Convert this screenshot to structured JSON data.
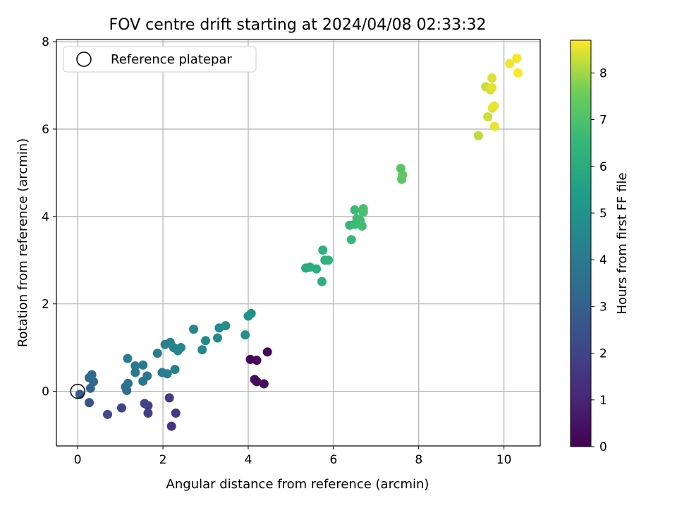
{
  "chart_data": {
    "type": "scatter",
    "title": "FOV centre drift starting at 2024/04/08 02:33:32",
    "xlabel": "Angular distance from reference (arcmin)",
    "ylabel": "Rotation from reference (arcmin)",
    "xlim": [
      -0.5,
      10.85
    ],
    "ylim": [
      -1.25,
      8.05
    ],
    "x_ticks": [
      0,
      2,
      4,
      6,
      8,
      10
    ],
    "y_ticks": [
      0,
      2,
      4,
      6,
      8
    ],
    "grid": true,
    "legend": {
      "placement": "top-left",
      "entries": [
        "Reference platepar"
      ]
    },
    "colorbar": {
      "label": "Hours from first FF file",
      "range": [
        0,
        8.7
      ],
      "ticks": [
        0,
        1,
        2,
        3,
        4,
        5,
        6,
        7,
        8
      ],
      "colormap": "viridis"
    },
    "reference_point": {
      "x": 0,
      "y": 0
    },
    "points": [
      {
        "x": 4.45,
        "y": 0.9,
        "h": 0.1
      },
      {
        "x": 4.05,
        "y": 0.73,
        "h": 0.15
      },
      {
        "x": 4.2,
        "y": 0.71,
        "h": 0.2
      },
      {
        "x": 4.15,
        "y": 0.27,
        "h": 0.25
      },
      {
        "x": 4.2,
        "y": 0.22,
        "h": 0.3
      },
      {
        "x": 4.37,
        "y": 0.17,
        "h": 0.35
      },
      {
        "x": 2.2,
        "y": -0.8,
        "h": 1.5
      },
      {
        "x": 2.3,
        "y": -0.5,
        "h": 1.6
      },
      {
        "x": 2.15,
        "y": -0.15,
        "h": 1.7
      },
      {
        "x": 1.65,
        "y": -0.5,
        "h": 1.8
      },
      {
        "x": 1.65,
        "y": -0.33,
        "h": 1.85
      },
      {
        "x": 1.57,
        "y": -0.28,
        "h": 1.9
      },
      {
        "x": 1.03,
        "y": -0.38,
        "h": 2.0
      },
      {
        "x": 0.7,
        "y": -0.53,
        "h": 2.2
      },
      {
        "x": 0.27,
        "y": -0.26,
        "h": 2.5
      },
      {
        "x": 0.05,
        "y": -0.07,
        "h": 2.9
      },
      {
        "x": 0.3,
        "y": 0.07,
        "h": 3.1
      },
      {
        "x": 0.37,
        "y": 0.22,
        "h": 3.2
      },
      {
        "x": 0.27,
        "y": 0.31,
        "h": 3.3
      },
      {
        "x": 0.33,
        "y": 0.38,
        "h": 3.4
      },
      {
        "x": 1.15,
        "y": 0.02,
        "h": 3.5
      },
      {
        "x": 1.12,
        "y": 0.1,
        "h": 3.6
      },
      {
        "x": 1.18,
        "y": 0.18,
        "h": 3.7
      },
      {
        "x": 1.53,
        "y": 0.23,
        "h": 3.8
      },
      {
        "x": 1.63,
        "y": 0.35,
        "h": 3.85
      },
      {
        "x": 1.35,
        "y": 0.43,
        "h": 3.9
      },
      {
        "x": 1.35,
        "y": 0.58,
        "h": 3.95
      },
      {
        "x": 1.53,
        "y": 0.6,
        "h": 4.0
      },
      {
        "x": 1.17,
        "y": 0.75,
        "h": 4.05
      },
      {
        "x": 1.87,
        "y": 0.87,
        "h": 4.1
      },
      {
        "x": 1.98,
        "y": 0.43,
        "h": 4.15
      },
      {
        "x": 2.1,
        "y": 0.4,
        "h": 4.2
      },
      {
        "x": 2.28,
        "y": 0.5,
        "h": 4.25
      },
      {
        "x": 2.05,
        "y": 1.07,
        "h": 4.3
      },
      {
        "x": 2.17,
        "y": 1.12,
        "h": 4.35
      },
      {
        "x": 2.25,
        "y": 1.0,
        "h": 4.4
      },
      {
        "x": 2.35,
        "y": 0.93,
        "h": 4.45
      },
      {
        "x": 2.42,
        "y": 1.0,
        "h": 4.5
      },
      {
        "x": 2.72,
        "y": 1.42,
        "h": 4.55
      },
      {
        "x": 2.92,
        "y": 0.95,
        "h": 4.6
      },
      {
        "x": 3.0,
        "y": 1.16,
        "h": 4.65
      },
      {
        "x": 3.28,
        "y": 1.22,
        "h": 4.7
      },
      {
        "x": 3.32,
        "y": 1.45,
        "h": 4.75
      },
      {
        "x": 3.47,
        "y": 1.5,
        "h": 4.8
      },
      {
        "x": 3.93,
        "y": 1.29,
        "h": 4.85
      },
      {
        "x": 4.0,
        "y": 1.72,
        "h": 4.9
      },
      {
        "x": 4.07,
        "y": 1.78,
        "h": 4.95
      },
      {
        "x": 5.35,
        "y": 2.82,
        "h": 6.0
      },
      {
        "x": 5.45,
        "y": 2.84,
        "h": 6.05
      },
      {
        "x": 5.6,
        "y": 2.8,
        "h": 6.1
      },
      {
        "x": 5.73,
        "y": 2.51,
        "h": 6.15
      },
      {
        "x": 5.75,
        "y": 3.23,
        "h": 6.2
      },
      {
        "x": 5.8,
        "y": 3.0,
        "h": 6.25
      },
      {
        "x": 5.88,
        "y": 3.0,
        "h": 6.3
      },
      {
        "x": 6.38,
        "y": 3.8,
        "h": 6.5
      },
      {
        "x": 6.42,
        "y": 3.47,
        "h": 6.55
      },
      {
        "x": 6.5,
        "y": 3.82,
        "h": 6.6
      },
      {
        "x": 6.5,
        "y": 4.15,
        "h": 6.65
      },
      {
        "x": 6.55,
        "y": 3.95,
        "h": 6.7
      },
      {
        "x": 6.63,
        "y": 3.9,
        "h": 6.75
      },
      {
        "x": 6.67,
        "y": 3.78,
        "h": 6.8
      },
      {
        "x": 6.7,
        "y": 4.1,
        "h": 6.85
      },
      {
        "x": 6.7,
        "y": 4.18,
        "h": 6.9
      },
      {
        "x": 7.58,
        "y": 5.1,
        "h": 7.2
      },
      {
        "x": 7.6,
        "y": 4.85,
        "h": 7.25
      },
      {
        "x": 7.62,
        "y": 4.95,
        "h": 7.3
      },
      {
        "x": 9.4,
        "y": 5.85,
        "h": 8.2
      },
      {
        "x": 9.57,
        "y": 6.97,
        "h": 8.3
      },
      {
        "x": 9.62,
        "y": 6.28,
        "h": 8.35
      },
      {
        "x": 9.68,
        "y": 6.9,
        "h": 8.4
      },
      {
        "x": 9.72,
        "y": 7.17,
        "h": 8.45
      },
      {
        "x": 9.72,
        "y": 6.95,
        "h": 8.5
      },
      {
        "x": 9.73,
        "y": 6.48,
        "h": 8.5
      },
      {
        "x": 9.77,
        "y": 6.53,
        "h": 8.55
      },
      {
        "x": 9.78,
        "y": 6.06,
        "h": 8.55
      },
      {
        "x": 10.13,
        "y": 7.5,
        "h": 8.6
      },
      {
        "x": 10.3,
        "y": 7.62,
        "h": 8.65
      },
      {
        "x": 10.33,
        "y": 7.29,
        "h": 8.7
      }
    ]
  }
}
